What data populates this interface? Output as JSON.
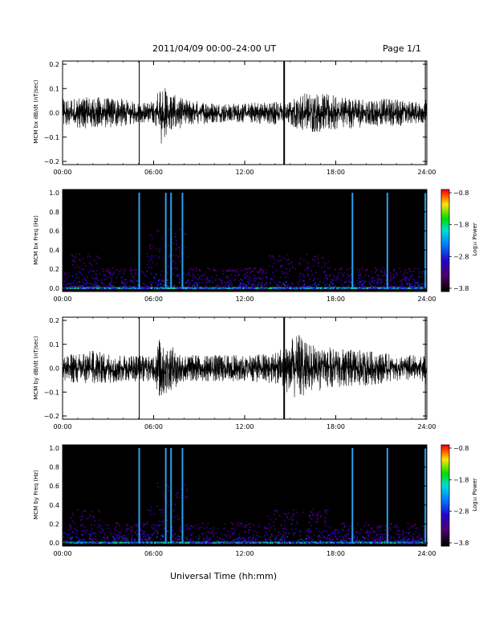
{
  "title": "2011/04/09   00:00–24:00 UT",
  "page": "Page 1/1",
  "xlabel": "Universal Time (hh:mm)",
  "colorbar_label": "Log₁₀ Power",
  "colors": {
    "background": "#ffffff",
    "trace": "#000000",
    "spectrogram_bg": "#000000"
  },
  "chart_data": [
    {
      "type": "line",
      "ylabel": "MCM bx dB/dt (nT/sec)",
      "x_range_hours": [
        0,
        24
      ],
      "xticks": [
        "00:00",
        "06:00",
        "12:00",
        "18:00",
        "24:00"
      ],
      "ylim": [
        -0.2,
        0.2
      ],
      "yticks": [
        "0.2",
        "0.1",
        "0.0",
        "−0.1",
        "−0.2"
      ],
      "series": [
        {
          "x": [
            0,
            2,
            4,
            5.05,
            6,
            6.5,
            7,
            8,
            10,
            12,
            14,
            14.6,
            16,
            18,
            20,
            22,
            23.9
          ],
          "y": [
            0.02,
            0.03,
            0.02,
            0.0,
            0.01,
            0.1,
            0.05,
            0.02,
            0.0,
            0.0,
            0.01,
            0.0,
            0.05,
            0.04,
            0.02,
            0.02,
            0.0
          ]
        }
      ],
      "spikes_hours": [
        5.05,
        14.6,
        23.9
      ]
    },
    {
      "type": "heatmap",
      "ylabel": "MCM bx Freq (Hz)",
      "x_range_hours": [
        0,
        24
      ],
      "xticks": [
        "00:00",
        "06:00",
        "12:00",
        "18:00",
        "24:00"
      ],
      "ylim": [
        0,
        1.0
      ],
      "yticks": [
        "1.0",
        "0.8",
        "0.6",
        "0.4",
        "0.2",
        "0.0"
      ],
      "colorbar": {
        "ticks": [
          "−0.8",
          "−1.8",
          "−2.8",
          "−3.8"
        ],
        "range": [
          -3.8,
          -0.8
        ]
      },
      "vertical_lines_hours": [
        5.05,
        6.8,
        7.15,
        7.9,
        19.1,
        21.4,
        23.9
      ]
    },
    {
      "type": "line",
      "ylabel": "MCM by dB/dt (nT/sec)",
      "x_range_hours": [
        0,
        24
      ],
      "xticks": [
        "00:00",
        "06:00",
        "12:00",
        "18:00",
        "24:00"
      ],
      "ylim": [
        -0.2,
        0.2
      ],
      "yticks": [
        "0.2",
        "0.1",
        "0.0",
        "−0.1",
        "−0.2"
      ],
      "series": [
        {
          "x": [
            0,
            2,
            4,
            5.05,
            6,
            6.5,
            7,
            8,
            10,
            12,
            14,
            15.5,
            16,
            18,
            20,
            22,
            23.9
          ],
          "y": [
            0.0,
            0.02,
            0.0,
            0.0,
            0.0,
            0.1,
            0.05,
            0.0,
            0.0,
            0.0,
            0.01,
            0.1,
            0.06,
            0.03,
            0.02,
            0.0,
            0.0
          ]
        }
      ],
      "spikes_hours": [
        5.05,
        14.6,
        23.9
      ]
    },
    {
      "type": "heatmap",
      "ylabel": "MCM by Freq (Hz)",
      "x_range_hours": [
        0,
        24
      ],
      "xticks": [
        "00:00",
        "06:00",
        "12:00",
        "18:00",
        "24:00"
      ],
      "ylim": [
        0,
        1.0
      ],
      "yticks": [
        "1.0",
        "0.8",
        "0.6",
        "0.4",
        "0.2",
        "0.0"
      ],
      "colorbar": {
        "ticks": [
          "−0.8",
          "−1.8",
          "−2.8",
          "−3.8"
        ],
        "range": [
          -3.8,
          -0.8
        ]
      },
      "vertical_lines_hours": [
        5.05,
        6.8,
        7.15,
        7.9,
        19.1,
        21.4,
        23.9
      ]
    }
  ]
}
